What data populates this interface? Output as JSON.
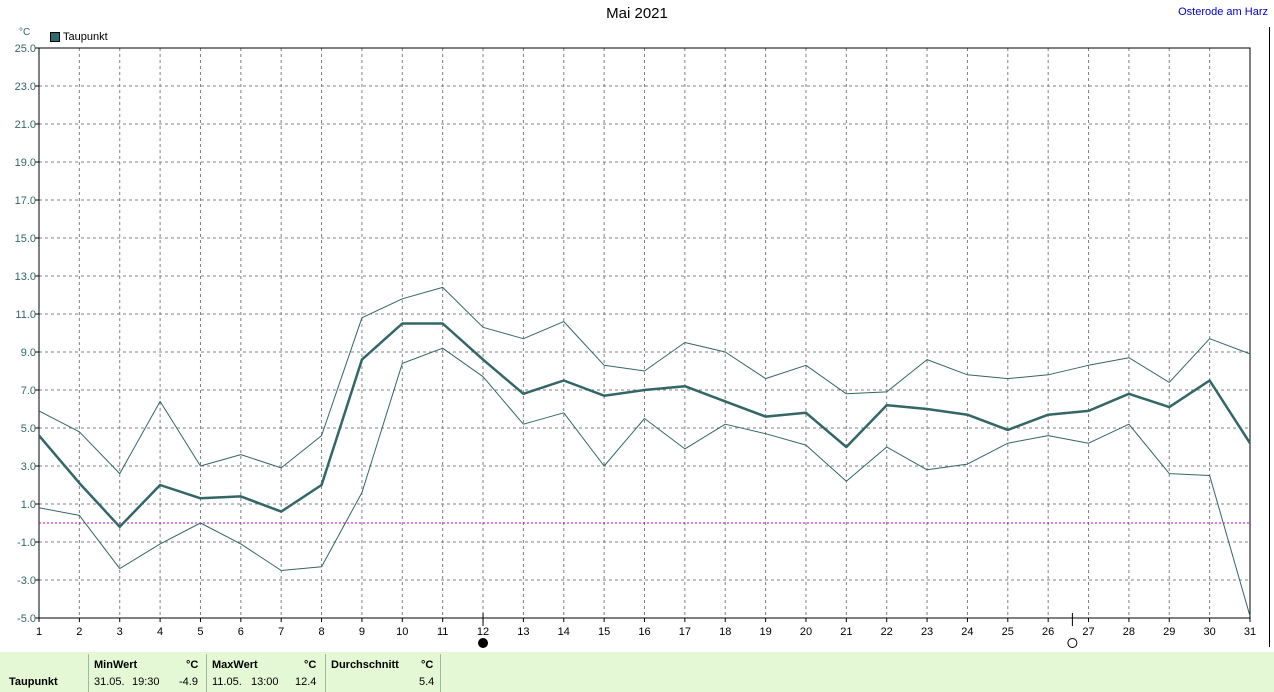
{
  "header": {
    "title": "Mai 2021",
    "station": "Osterode am Harz",
    "unit": "°C",
    "legend_label": "Taupunkt"
  },
  "chart_data": {
    "type": "line",
    "title": "Mai 2021",
    "xlabel": "",
    "ylabel": "°C",
    "x": [
      1,
      2,
      3,
      4,
      5,
      6,
      7,
      8,
      9,
      10,
      11,
      12,
      13,
      14,
      15,
      16,
      17,
      18,
      19,
      20,
      21,
      22,
      23,
      24,
      25,
      26,
      27,
      28,
      29,
      30,
      31
    ],
    "xlim": [
      1,
      31
    ],
    "ylim": [
      -5.0,
      25.0
    ],
    "yticks": [
      "25.0",
      "23.0",
      "21.0",
      "19.0",
      "17.0",
      "15.0",
      "13.0",
      "11.0",
      "9.0",
      "7.0",
      "5.0",
      "3.0",
      "1.0",
      "-1.0",
      "-3.0",
      "-5.0"
    ],
    "xticks": [
      "1",
      "2",
      "3",
      "4",
      "5",
      "6",
      "7",
      "8",
      "9",
      "10",
      "11",
      "12",
      "13",
      "14",
      "15",
      "16",
      "17",
      "18",
      "19",
      "20",
      "21",
      "22",
      "23",
      "24",
      "25",
      "26",
      "27",
      "28",
      "29",
      "30",
      "31"
    ],
    "grid": true,
    "legend_position": "top-left",
    "reference_line": 0.0,
    "moon_phases": [
      {
        "day": 12,
        "phase": "full"
      },
      {
        "day": 26.6,
        "phase": "new"
      }
    ],
    "series": [
      {
        "name": "Taupunkt",
        "role": "mean",
        "values": [
          4.6,
          2.1,
          -0.2,
          2.0,
          1.3,
          1.4,
          0.6,
          2.0,
          8.6,
          10.5,
          10.5,
          8.6,
          6.8,
          7.5,
          6.7,
          7.0,
          7.2,
          6.4,
          5.6,
          5.8,
          4.0,
          6.2,
          6.0,
          5.7,
          4.9,
          5.7,
          5.9,
          6.8,
          6.1,
          7.5,
          4.2
        ],
        "color": "#336666"
      },
      {
        "role": "max",
        "values": [
          5.9,
          4.8,
          2.6,
          6.4,
          3.0,
          3.6,
          2.9,
          4.6,
          10.8,
          11.8,
          12.4,
          10.3,
          9.7,
          10.6,
          8.3,
          8.0,
          9.5,
          9.0,
          7.6,
          8.3,
          6.8,
          6.9,
          8.6,
          7.8,
          7.6,
          7.8,
          8.3,
          8.7,
          7.4,
          9.7,
          8.9
        ],
        "color": "#336666"
      },
      {
        "role": "min",
        "values": [
          0.8,
          0.4,
          -2.4,
          -1.1,
          0.0,
          -1.1,
          -2.5,
          -2.3,
          1.6,
          8.4,
          9.2,
          7.7,
          5.2,
          5.8,
          3.0,
          5.5,
          3.9,
          5.2,
          4.7,
          4.1,
          2.2,
          4.0,
          2.8,
          3.1,
          4.2,
          4.6,
          4.2,
          5.2,
          2.6,
          2.5,
          -4.9
        ],
        "color": "#336666"
      }
    ]
  },
  "stats": {
    "row_label": "Taupunkt",
    "min": {
      "header": "MinWert",
      "unit": "°C",
      "date": "31.05.",
      "time": "19:30",
      "value": "-4.9"
    },
    "max": {
      "header": "MaxWert",
      "unit": "°C",
      "date": "11.05.",
      "time": "13:00",
      "value": "12.4"
    },
    "avg": {
      "header": "Durchschnitt",
      "unit": "°C",
      "value": "5.4"
    }
  },
  "colors": {
    "grid": "#808080",
    "series": "#336666",
    "reference_line": "#cc00cc",
    "stats_background": "#e5f8d5"
  }
}
